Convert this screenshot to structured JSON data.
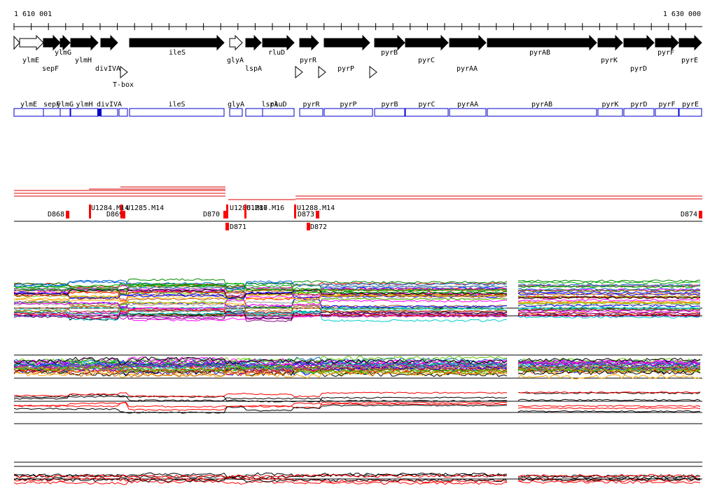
{
  "ruler": {
    "start": "1 610 001",
    "end": "1 630 000"
  },
  "genes": [
    "ylmE",
    "sepF",
    "ylmG",
    "ylmH",
    "divIVA",
    "ileS",
    "glyA",
    "lspA",
    "rluD",
    "pyrR",
    "pyrP",
    "pyrB",
    "pyrC",
    "pyrAA",
    "pyrAB",
    "pyrK",
    "pyrD",
    "pyrF",
    "pyrE"
  ],
  "features": [
    "T-box"
  ],
  "gene_boxes": [
    "ylmE",
    "sepF",
    "ylmG",
    "ylmH",
    "divIVA",
    "ileS",
    "glyA",
    "lspA",
    "rluD",
    "pyrR",
    "pyrP",
    "pyrB",
    "pyrC",
    "pyrAA",
    "pyrAB",
    "pyrK",
    "pyrD",
    "pyrF",
    "pyrE"
  ],
  "markers": [
    "D868",
    "U1284.M14",
    "D869",
    "U1285.M14",
    "D870",
    "D871",
    "U1286.M16",
    "U1287.M16",
    "D873",
    "D872",
    "U1288.M14",
    "D874"
  ]
}
